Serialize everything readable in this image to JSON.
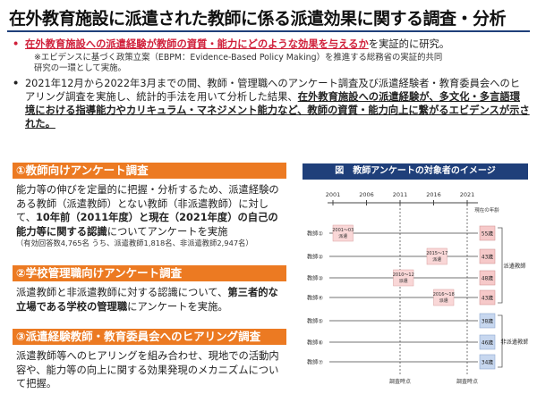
{
  "title": "在外教育施設に派遣された教師に係る派遣効果に関する調査・分析",
  "bullets": {
    "b1_red": "在外教育施設への派遣経験が教師の資質・能力にどのような効果を与えるか",
    "b1_rest": "を実証的に研究。",
    "note1": "※エビデンスに基づく政策立案（EBPM：Evidence-Based Policy Making）を推進する総務省の実証的共同",
    "note2": "研究の一環として実施。",
    "b2_plain": "2021年12月から2022年3月までの間、教師・管理職へのアンケート調査及び派遣経験者・教育委員会へのヒアリング調査を実施し、統計的手法を用いて分析した結果、",
    "b2_bold": "在外教育施設への派遣経験が、多文化・多言語環境における指導能力やカリキュラム・マネジメント能力など、教師の資質・能力向上に繋がるエビデンスが示された。"
  },
  "sections": {
    "s1_head": "①教師向けアンケート調査",
    "s1_t1": "能力等の伸びを定量的に把握・分析するため、派遣経験のある教師（派遣教師）とない教師（非派遣教師）に対して、",
    "s1_b1": "10年前（2011年度）と現在（2021年度）の自己の能力等に関する認識",
    "s1_t2": "についてアンケートを実施",
    "s1_small": "（有効回答数4,765名 うち、派遣教師1,818名、非派遣教師2,947名）",
    "s2_head": "②学校管理職向けアンケート調査",
    "s2_t1": "派遣教師と非派遣教師に対する認識について、",
    "s2_b1": "第三者的な立場である学校の管理職",
    "s2_t2": "にアンケートを実施。",
    "s3_head": "③派遣経験教師・教育委員会へのヒアリング調査",
    "s3_t1": "派遣教師等へのヒアリングを組み合わせ、現地での活動内容や、能力等の向上に関する効果発現のメカニズムについて把握。"
  },
  "figure": {
    "title": "図　教師アンケートの対象者のイメージ",
    "years": [
      "2001",
      "2006",
      "2011",
      "2016",
      "2021"
    ],
    "current_age_label": "現在の年齢",
    "teachers": [
      "教師①",
      "教師②",
      "教師③",
      "教師④",
      "教師⑤",
      "教師⑥",
      "教師⑦"
    ],
    "periods": [
      "2001～03\n派遣",
      "2015～17\n派遣",
      "2010～12\n派遣",
      "2016～18\n派遣"
    ],
    "ages": [
      "55歳",
      "43歳",
      "48歳",
      "43歳",
      "38歳",
      "46歳",
      "34歳"
    ],
    "group_dispatched": "派遣教師",
    "group_nondispatched": "非派遣教師",
    "survey_label": "調査時点",
    "colors": {
      "dispatched_age": "#f6c9c9",
      "nondispatched_age": "#c7d7ef",
      "period": "#f9d7d7",
      "orange": "#ec7a22",
      "navy": "#1f3f7a"
    }
  }
}
